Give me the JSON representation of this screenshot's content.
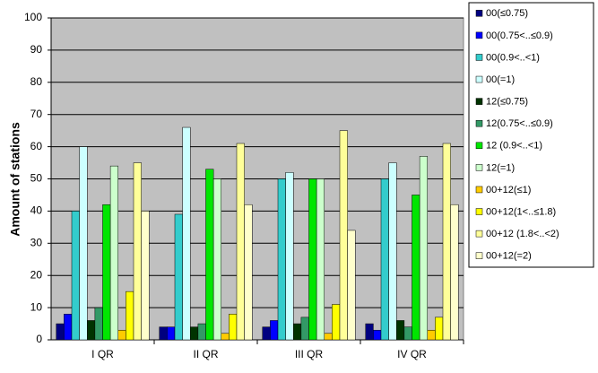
{
  "chart_data": {
    "type": "bar",
    "y_label": "Amount of stations",
    "categories": [
      "I QR",
      "II QR",
      "III QR",
      "IV QR"
    ],
    "ylim": [
      0,
      100
    ],
    "yticks": [
      0,
      10,
      20,
      30,
      40,
      50,
      60,
      70,
      80,
      90,
      100
    ],
    "grid": true,
    "legend": "right",
    "series": [
      {
        "name": "00(≤0.75)",
        "color": "#000080",
        "values": [
          5,
          4,
          4,
          5
        ]
      },
      {
        "name": "00(0.75<..≤0.9)",
        "color": "#0000ff",
        "values": [
          8,
          4,
          6,
          3
        ]
      },
      {
        "name": "00(0.9<..<1)",
        "color": "#33cccc",
        "values": [
          40,
          39,
          50,
          50
        ]
      },
      {
        "name": "00(=1)",
        "color": "#ccffff",
        "values": [
          60,
          66,
          52,
          55
        ]
      },
      {
        "name": "12(≤0.75)",
        "color": "#003300",
        "values": [
          6,
          4,
          5,
          6
        ]
      },
      {
        "name": "12(0.75<..≤0.9)",
        "color": "#339966",
        "values": [
          10,
          5,
          7,
          4
        ]
      },
      {
        "name": "12 (0.9<..<1)",
        "color": "#00e600",
        "values": [
          42,
          53,
          50,
          45
        ]
      },
      {
        "name": "12(=1)",
        "color": "#ccffcc",
        "values": [
          54,
          50,
          50,
          57
        ]
      },
      {
        "name": "00+12(≤1)",
        "color": "#ffcc00",
        "values": [
          3,
          2,
          2,
          3
        ]
      },
      {
        "name": "00+12(1<..≤1.8)",
        "color": "#ffff00",
        "values": [
          15,
          8,
          11,
          7
        ]
      },
      {
        "name": "00+12 (1.8<..<2)",
        "color": "#ffff99",
        "values": [
          55,
          61,
          65,
          61
        ]
      },
      {
        "name": "00+12(=2)",
        "color": "#ffffcc",
        "values": [
          40,
          42,
          34,
          42
        ]
      }
    ]
  }
}
